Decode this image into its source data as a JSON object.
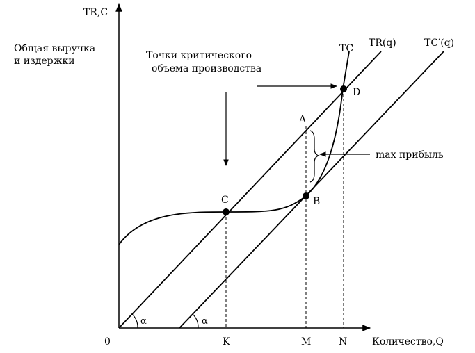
{
  "axes": {
    "y_label_top": "TR,C",
    "y_label_line1": "Общая выручка",
    "y_label_line2": "и издержки",
    "x_label": "Количество,Q",
    "origin": "0"
  },
  "x_ticks": [
    "K",
    "M",
    "N"
  ],
  "curves": {
    "tr": "TR(q)",
    "tc_curve": "TC",
    "tc_line": "TC′(q)"
  },
  "points": [
    "A",
    "B",
    "C",
    "D"
  ],
  "angle_symbol": "α",
  "annotations": {
    "critical_line1": "Точки критического",
    "critical_line2": "объема производства",
    "max_profit": "max  прибыль"
  }
}
